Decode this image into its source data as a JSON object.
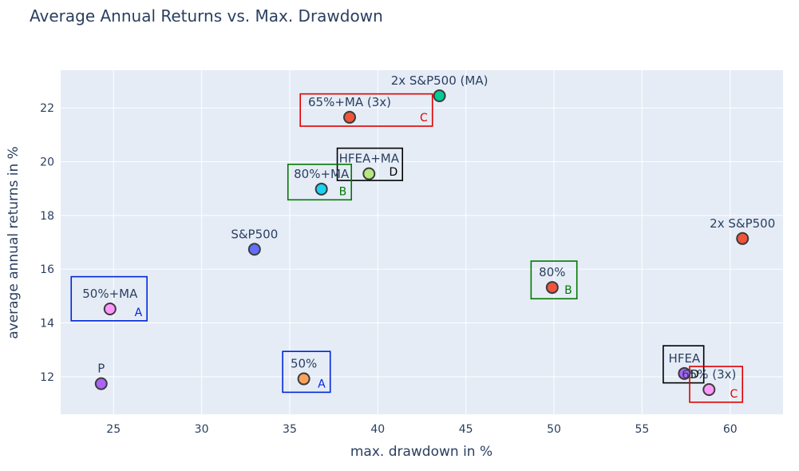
{
  "chart_data": {
    "type": "scatter",
    "title": "Average Annual Returns vs. Max. Drawdown",
    "xlabel": "max. drawdown in %",
    "ylabel": "average annual returns in %",
    "xlim": [
      22,
      63
    ],
    "ylim": [
      10.6,
      23.4
    ],
    "xticks": [
      25,
      30,
      35,
      40,
      45,
      50,
      55,
      60
    ],
    "yticks": [
      12,
      14,
      16,
      18,
      20,
      22
    ],
    "grid": true,
    "colors": {
      "plot_bg": "#e5ecf6",
      "grid": "#ffffff",
      "marker_edge": "#3b3b3b",
      "text": "#2a3f5f"
    },
    "points": [
      {
        "label": "2x S&P500 (MA)",
        "x": 43.5,
        "y": 22.45,
        "color": "#00cc96"
      },
      {
        "label": "65%+MA (3x)",
        "x": 38.4,
        "y": 21.65,
        "color": "#ef553b"
      },
      {
        "label": "HFEA+MA",
        "x": 39.5,
        "y": 19.55,
        "color": "#b6e880"
      },
      {
        "label": "80%+MA",
        "x": 36.8,
        "y": 18.98,
        "color": "#19d3f3"
      },
      {
        "label": "2x S&P500",
        "x": 60.7,
        "y": 17.14,
        "color": "#ef553b"
      },
      {
        "label": "S&P500",
        "x": 33.0,
        "y": 16.74,
        "color": "#636efa"
      },
      {
        "label": "80%",
        "x": 49.9,
        "y": 15.32,
        "color": "#ef553b"
      },
      {
        "label": "50%+MA",
        "x": 24.8,
        "y": 14.52,
        "color": "#ff97ff"
      },
      {
        "label": "HFEA",
        "x": 57.4,
        "y": 12.12,
        "color": "#ab63fa"
      },
      {
        "label": "50%",
        "x": 35.8,
        "y": 11.92,
        "color": "#ffa15a"
      },
      {
        "label": "P",
        "x": 24.3,
        "y": 11.74,
        "color": "#ab63fa"
      },
      {
        "label": "65% (3x)",
        "x": 58.8,
        "y": 11.52,
        "color": "#ff97ff"
      }
    ],
    "annotation_boxes": [
      {
        "letter": "C",
        "x0": 35.6,
        "x1": 43.1,
        "y0": 21.32,
        "y1": 22.52,
        "color": "#e00000"
      },
      {
        "letter": "D",
        "x0": 37.7,
        "x1": 41.4,
        "y0": 19.3,
        "y1": 20.5,
        "color": "#000000"
      },
      {
        "letter": "B",
        "x0": 34.9,
        "x1": 38.5,
        "y0": 18.58,
        "y1": 19.9,
        "color": "#007a00"
      },
      {
        "letter": "A",
        "x0": 22.6,
        "x1": 26.9,
        "y0": 14.08,
        "y1": 15.72,
        "color": "#0026d9"
      },
      {
        "letter": "B",
        "x0": 48.7,
        "x1": 51.3,
        "y0": 14.9,
        "y1": 16.3,
        "color": "#007a00"
      },
      {
        "letter": "A",
        "x0": 34.6,
        "x1": 37.3,
        "y0": 11.42,
        "y1": 12.94,
        "color": "#0026d9"
      },
      {
        "letter": "D",
        "x0": 56.2,
        "x1": 58.5,
        "y0": 11.77,
        "y1": 13.15,
        "color": "#000000"
      },
      {
        "letter": "C",
        "x0": 57.7,
        "x1": 60.7,
        "y0": 11.05,
        "y1": 12.38,
        "color": "#e00000"
      }
    ]
  }
}
